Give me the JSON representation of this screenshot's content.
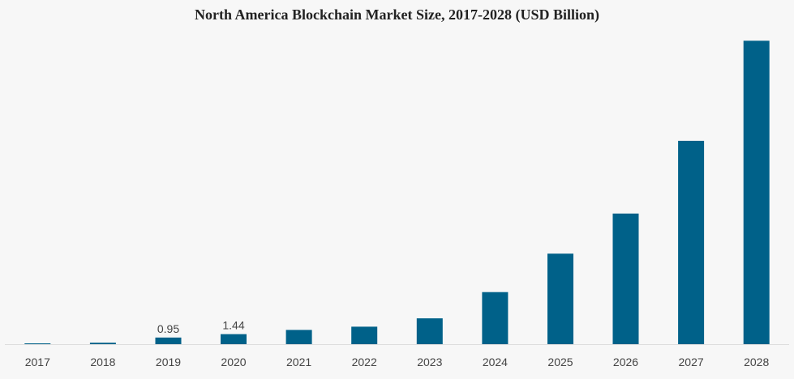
{
  "chart_data": {
    "type": "bar",
    "title": "North America Blockchain Market Size, 2017-2028 (USD Billion)",
    "xlabel": "",
    "ylabel": "",
    "categories": [
      "2017",
      "2018",
      "2019",
      "2020",
      "2021",
      "2022",
      "2023",
      "2024",
      "2025",
      "2026",
      "2027",
      "2028"
    ],
    "values": [
      0.1,
      0.21,
      0.95,
      1.44,
      2.04,
      2.5,
      3.7,
      7.45,
      12.96,
      18.7,
      29.11,
      43.44
    ],
    "data_labels": [
      "",
      "",
      "0.95",
      "1.44",
      "",
      "",
      "",
      "",
      "",
      "",
      "",
      ""
    ],
    "ylim": [
      0,
      44.4
    ],
    "grid": false,
    "legend": "none",
    "colors": {
      "bar": "#006189",
      "baseline": "#dddddd",
      "background": "#f7f7f7"
    }
  }
}
